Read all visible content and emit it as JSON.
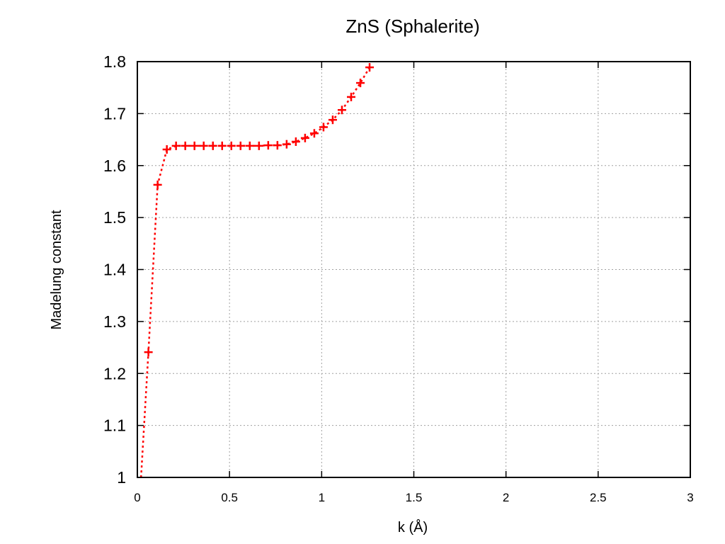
{
  "chart_data": {
    "type": "scatter",
    "title": "ZnS (Sphalerite)",
    "xlabel": "k (Å)",
    "ylabel": "Madelung constant",
    "xlim": [
      0,
      3
    ],
    "ylim": [
      1,
      1.8
    ],
    "grid": true,
    "xticks": [
      0,
      0.5,
      1,
      1.5,
      2,
      2.5,
      3
    ],
    "xtick_labels": [
      "0",
      "0.5",
      "1",
      "1.5",
      "2",
      "2.5",
      "3"
    ],
    "yticks": [
      1,
      1.1,
      1.2,
      1.3,
      1.4,
      1.5,
      1.6,
      1.7,
      1.8
    ],
    "ytick_labels": [
      "1",
      "1.1",
      "1.2",
      "1.3",
      "1.4",
      "1.5",
      "1.6",
      "1.7",
      "1.8"
    ],
    "series": [
      {
        "color": "#ff0000",
        "marker": "plus",
        "line_style": "dotted",
        "points": [
          [
            0.02,
            1.0
          ],
          [
            0.06,
            1.241
          ],
          [
            0.11,
            1.563
          ],
          [
            0.16,
            1.631
          ],
          [
            0.21,
            1.638
          ],
          [
            0.26,
            1.638
          ],
          [
            0.31,
            1.638
          ],
          [
            0.36,
            1.638
          ],
          [
            0.41,
            1.638
          ],
          [
            0.46,
            1.638
          ],
          [
            0.51,
            1.638
          ],
          [
            0.56,
            1.638
          ],
          [
            0.61,
            1.638
          ],
          [
            0.66,
            1.638
          ],
          [
            0.71,
            1.639
          ],
          [
            0.76,
            1.639
          ],
          [
            0.81,
            1.641
          ],
          [
            0.86,
            1.646
          ],
          [
            0.91,
            1.653
          ],
          [
            0.96,
            1.662
          ],
          [
            1.01,
            1.674
          ],
          [
            1.06,
            1.688
          ],
          [
            1.11,
            1.707
          ],
          [
            1.16,
            1.732
          ],
          [
            1.21,
            1.759
          ],
          [
            1.26,
            1.789
          ]
        ]
      }
    ]
  }
}
